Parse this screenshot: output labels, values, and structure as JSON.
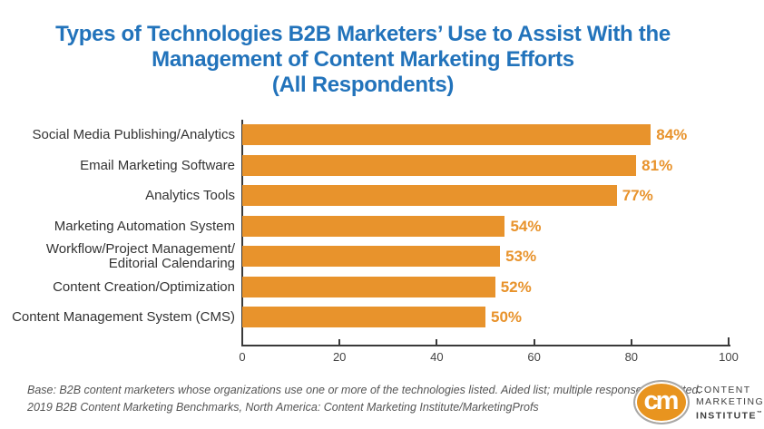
{
  "title": {
    "line1": "Types of Technologies B2B Marketers’ Use to Assist With the",
    "line2": "Management of Content Marketing Efforts",
    "line3": "(All Respondents)"
  },
  "chart_data": {
    "type": "bar",
    "orientation": "horizontal",
    "categories": [
      "Social Media Publishing/Analytics",
      "Email Marketing Software",
      "Analytics Tools",
      "Marketing Automation System",
      "Workflow/Project Management/\nEditorial Calendaring",
      "Content Creation/Optimization",
      "Content Management System (CMS)"
    ],
    "values": [
      84,
      81,
      77,
      54,
      53,
      52,
      50
    ],
    "value_labels": [
      "84%",
      "81%",
      "77%",
      "54%",
      "53%",
      "52%",
      "50%"
    ],
    "xlim": [
      0,
      100
    ],
    "x_ticks": [
      0,
      20,
      40,
      60,
      80,
      100
    ],
    "grid": false,
    "legend": "none",
    "bar_color": "#E8932C",
    "value_label_color": "#E8932C",
    "axis_color": "#3A3A3A"
  },
  "footer": {
    "line1": "Base: B2B content marketers whose organizations use one or more of the technologies listed. Aided list; multiple responses permitted.",
    "line2": "2019 B2B Content Marketing Benchmarks, North America: Content Marketing Institute/MarketingProfs"
  },
  "logo": {
    "monogram": "cm",
    "line1": "CONTENT",
    "line2": "MARKETING",
    "line3": "INSTITUTE",
    "trademark": "™",
    "accent_color": "#E8941F"
  },
  "colors": {
    "title": "#2273BB",
    "category_label": "#333333",
    "footer": "#555555"
  }
}
